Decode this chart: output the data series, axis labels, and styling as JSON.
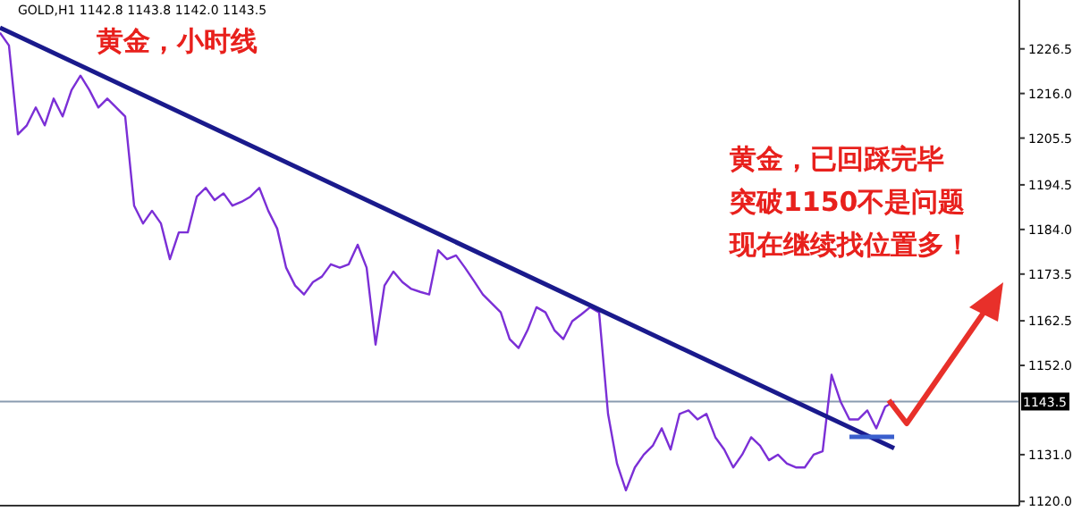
{
  "chart_data": {
    "type": "line",
    "title": "黄金，小时线",
    "subtitle": "GOLD,H1 1142.8 1143.8 1142.0 1143.5",
    "annotations": [
      "黄金，已回踩完毕",
      "突破1150不是问题",
      "现在继续找位置多！"
    ],
    "categories": [
      null,
      null,
      null,
      null,
      null,
      null,
      null,
      null,
      null,
      null,
      null,
      null,
      null,
      null,
      null,
      null,
      null,
      null,
      null,
      null,
      null,
      null,
      null,
      null,
      null,
      null,
      null,
      null,
      null,
      null,
      null,
      null,
      null,
      null,
      null,
      null,
      null,
      null,
      null,
      null,
      null,
      null,
      null,
      null,
      null,
      null,
      null,
      null,
      null,
      null,
      null,
      null,
      null,
      null,
      null,
      null,
      null,
      null,
      null,
      null,
      null,
      null,
      null,
      null,
      null,
      null,
      null,
      null,
      null,
      null,
      null,
      null,
      null,
      null,
      null,
      null,
      null,
      null,
      null,
      null,
      null,
      null,
      null,
      null,
      null,
      null,
      null,
      null,
      null,
      null,
      null,
      null,
      null,
      null,
      null,
      null,
      null,
      null,
      null,
      null,
      null
    ],
    "ylim": [
      1119,
      1238
    ],
    "yticks": [
      {
        "value": 1120.0,
        "label": "1120.0"
      },
      {
        "value": 1131.0,
        "label": "1131.0"
      },
      {
        "value": 1152.0,
        "label": "1152.0"
      },
      1162.5,
      1173.5,
      {
        "value": 1184.0,
        "label": "1184.0"
      },
      1194.5,
      1205.5,
      {
        "value": 1216.0,
        "label": "1216.0"
      },
      1226.5
    ],
    "tick_labels": "y",
    "marker": "none",
    "line_style": "solid",
    "ref_lines": [
      {
        "axis": "y",
        "value": 1143.5,
        "label": "1143.5",
        "color": "#8a9bb0"
      }
    ],
    "series": [
      {
        "color": "#7b2fd6",
        "values": [
          1230.3,
          1227.3,
          1206.4,
          1208.5,
          1212.7,
          1208.5,
          1214.8,
          1210.6,
          1216.8,
          1220.2,
          1216.8,
          1212.7,
          1214.8,
          1212.7,
          1210.6,
          1189.6,
          1185.4,
          1188.4,
          1185.4,
          1177.0,
          1183.3,
          1183.3,
          1191.7,
          1193.8,
          1190.9,
          1192.5,
          1189.6,
          1190.5,
          1191.7,
          1193.8,
          1188.4,
          1184.2,
          1175.0,
          1170.8,
          1168.7,
          1171.6,
          1172.9,
          1175.8,
          1175.0,
          1175.8,
          1180.4,
          1175.0,
          1156.9,
          1170.8,
          1174.1,
          1171.6,
          1170.0,
          1169.3,
          1168.7,
          1179.1,
          1177.0,
          1177.9,
          1175.0,
          1171.9,
          1168.7,
          1166.6,
          1164.5,
          1158.2,
          1156.1,
          1160.3,
          1165.7,
          1164.5,
          1160.3,
          1158.2,
          1162.4,
          1164.0,
          1165.7,
          1164.5,
          1140.6,
          1128.9,
          1122.6,
          1128.0,
          1131.0,
          1133.1,
          1137.2,
          1132.2,
          1140.6,
          1141.4,
          1139.3,
          1140.6,
          1135.1,
          1132.2,
          1128.0,
          1131.0,
          1135.1,
          1133.1,
          1129.7,
          1131.0,
          1128.9,
          1128.0,
          1128.0,
          1131.0,
          1131.8,
          1149.8,
          1143.5,
          1139.3,
          1139.3,
          1141.4,
          1137.2,
          1142.3,
          1143.5
        ]
      },
      {
        "color": "#1a1a8c",
        "values": [
          1231.5,
          null,
          null,
          null,
          null,
          null,
          null,
          null,
          null,
          null,
          null,
          null,
          null,
          null,
          null,
          null,
          null,
          null,
          null,
          null,
          null,
          null,
          null,
          null,
          null,
          null,
          null,
          null,
          null,
          null,
          null,
          null,
          null,
          null,
          null,
          null,
          null,
          null,
          null,
          null,
          null,
          null,
          null,
          null,
          null,
          null,
          null,
          null,
          null,
          null,
          null,
          null,
          null,
          null,
          null,
          null,
          null,
          null,
          null,
          null,
          null,
          null,
          null,
          null,
          null,
          null,
          null,
          null,
          null,
          null,
          null,
          null,
          null,
          null,
          null,
          null,
          null,
          null,
          null,
          null,
          null,
          null,
          null,
          null,
          null,
          null,
          null,
          null,
          null,
          null,
          null,
          null,
          null,
          null,
          null,
          null,
          null,
          null,
          null,
          null,
          1132.5
        ]
      },
      {
        "color": "#3a5fcd",
        "values": [
          null,
          null,
          null,
          null,
          null,
          null,
          null,
          null,
          null,
          null,
          null,
          null,
          null,
          null,
          null,
          null,
          null,
          null,
          null,
          null,
          null,
          null,
          null,
          null,
          null,
          null,
          null,
          null,
          null,
          null,
          null,
          null,
          null,
          null,
          null,
          null,
          null,
          null,
          null,
          null,
          null,
          null,
          null,
          null,
          null,
          null,
          null,
          null,
          null,
          null,
          null,
          null,
          null,
          null,
          null,
          null,
          null,
          null,
          null,
          null,
          null,
          null,
          null,
          null,
          null,
          null,
          null,
          null,
          null,
          null,
          null,
          null,
          null,
          null,
          null,
          null,
          null,
          null,
          null,
          null,
          null,
          null,
          null,
          null,
          null,
          null,
          null,
          null,
          null,
          null,
          null,
          null,
          null,
          null,
          null,
          1135.2,
          1135.2,
          1135.2,
          1135.2,
          1135.2,
          1135.2
        ]
      }
    ]
  }
}
